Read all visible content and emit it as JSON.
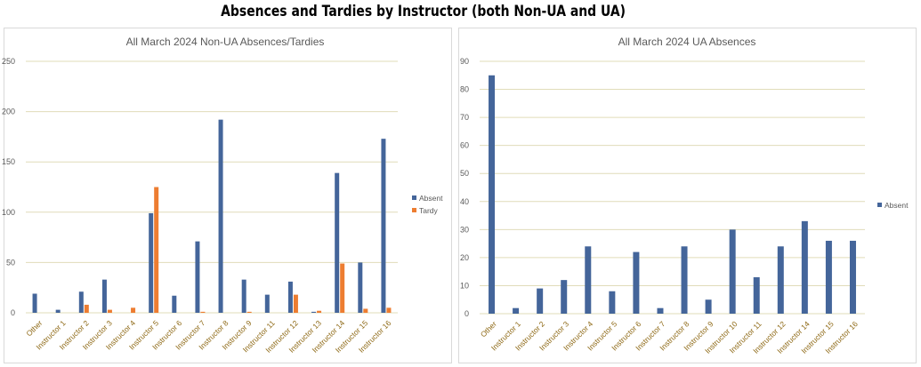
{
  "page_title": "Absences and Tardies by Instructor (both Non-UA and UA)",
  "colors": {
    "absent": "#44659a",
    "tardy": "#ed7d31",
    "grid": "#e0dcb9",
    "axis_text": "#595959",
    "tick_label": "#8f6a17"
  },
  "chart_data": [
    {
      "type": "bar",
      "title": "All March 2024 Non-UA Absences/Tardies",
      "categories": [
        "Other",
        "Instructor 1",
        "Instructor 2",
        "Instructor 3",
        "Instructor 4",
        "Instructor 5",
        "Instructor 6",
        "Instructor 7",
        "Instructor 8",
        "Instructor 9",
        "Instructor 11",
        "Instructor 12",
        "Instructor 13",
        "Instructor 14",
        "Instructor 15",
        "Instructor 16"
      ],
      "series": [
        {
          "name": "Absent",
          "values": [
            19,
            3,
            21,
            33,
            0,
            99,
            17,
            71,
            192,
            33,
            18,
            31,
            1,
            139,
            50,
            173
          ]
        },
        {
          "name": "Tardy",
          "values": [
            0,
            0,
            8,
            3,
            5,
            125,
            0,
            1,
            0,
            1,
            0,
            18,
            2,
            49,
            4,
            5
          ]
        }
      ],
      "ylim": [
        0,
        250
      ],
      "yticks": [
        0,
        50,
        100,
        150,
        200,
        250
      ],
      "grid": true,
      "legend": "right"
    },
    {
      "type": "bar",
      "title": "All March 2024 UA Absences",
      "categories": [
        "Other",
        "Instructor 1",
        "Instructor 2",
        "Instructor 3",
        "Instructor 4",
        "Instructor 5",
        "Instructor 6",
        "Instructor 7",
        "Instructor 8",
        "Instructor 9",
        "Instructor 10",
        "Instructor 11",
        "Instructor 12",
        "Instructor 14",
        "Instructor 15",
        "Instructor 16"
      ],
      "series": [
        {
          "name": "Absent",
          "values": [
            85,
            2,
            9,
            12,
            24,
            8,
            22,
            2,
            24,
            5,
            30,
            13,
            24,
            33,
            26,
            26
          ]
        }
      ],
      "ylim": [
        0,
        90
      ],
      "yticks": [
        0,
        10,
        20,
        30,
        40,
        50,
        60,
        70,
        80,
        90
      ],
      "grid": true,
      "legend": "right"
    }
  ]
}
